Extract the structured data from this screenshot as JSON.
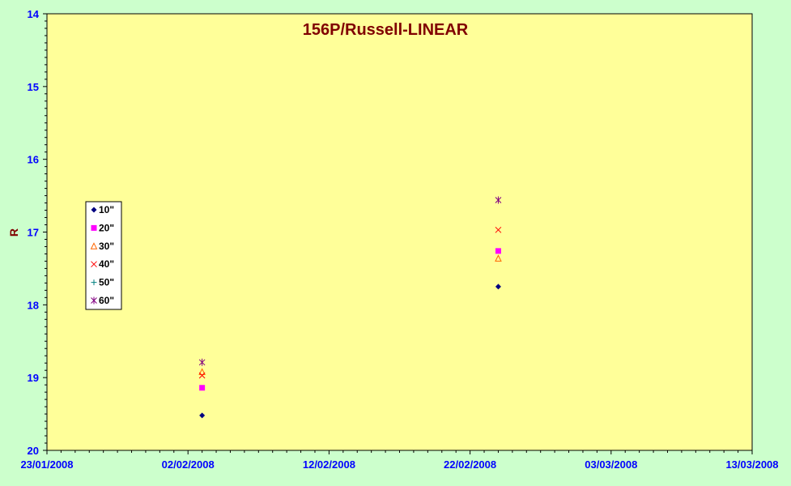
{
  "chart_data": {
    "type": "scatter",
    "title": "156P/Russell-LINEAR",
    "xlabel": "",
    "ylabel": "R",
    "x_ticks": [
      "23/01/2008",
      "02/02/2008",
      "12/02/2008",
      "22/02/2008",
      "03/03/2008",
      "13/03/2008"
    ],
    "xlim": [
      "2008-01-23",
      "2008-03-13"
    ],
    "ylim": [
      14,
      20
    ],
    "y_inverted": true,
    "y_ticks": [
      "14",
      "15",
      "16",
      "17",
      "18",
      "19",
      "20"
    ],
    "grid": false,
    "legend_position": "left",
    "plot_background": "#ffff99",
    "page_background": "#ccffcc",
    "series": [
      {
        "name": "10\"",
        "marker": "diamond",
        "color": "#000080",
        "points": [
          {
            "x": "2008-02-03",
            "y": 19.52
          },
          {
            "x": "2008-02-24",
            "y": 17.75
          }
        ]
      },
      {
        "name": "20\"",
        "marker": "square",
        "color": "#ff00ff",
        "points": [
          {
            "x": "2008-02-03",
            "y": 19.14
          },
          {
            "x": "2008-02-24",
            "y": 17.26
          }
        ]
      },
      {
        "name": "30\"",
        "marker": "triangle",
        "color": "#ff6600",
        "points": [
          {
            "x": "2008-02-03",
            "y": 18.92
          },
          {
            "x": "2008-02-24",
            "y": 17.36
          }
        ]
      },
      {
        "name": "40\"",
        "marker": "x",
        "color": "#ff0000",
        "points": [
          {
            "x": "2008-02-03",
            "y": 18.97
          },
          {
            "x": "2008-02-24",
            "y": 16.97
          }
        ]
      },
      {
        "name": "50\"",
        "marker": "plus",
        "color": "#008080",
        "points": []
      },
      {
        "name": "60\"",
        "marker": "star",
        "color": "#800080",
        "points": [
          {
            "x": "2008-02-03",
            "y": 18.79
          },
          {
            "x": "2008-02-24",
            "y": 16.56
          }
        ]
      }
    ]
  }
}
